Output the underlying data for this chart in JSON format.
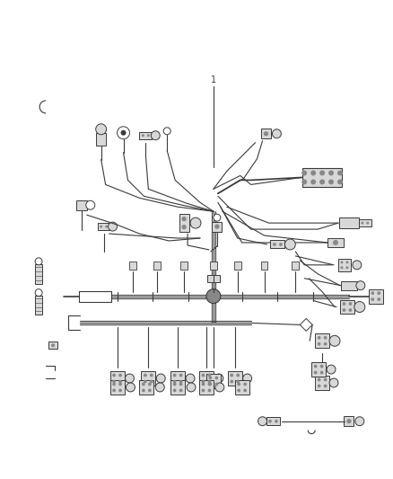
{
  "bg_color": "#ffffff",
  "line_color": "#3a3a3a",
  "fill_color": "#d8d8d8",
  "dark_fill": "#888888",
  "fig_width": 4.38,
  "fig_height": 5.33,
  "dpi": 100
}
